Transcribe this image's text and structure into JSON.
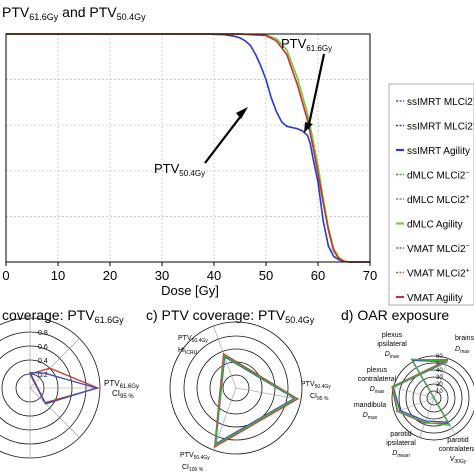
{
  "chart_data": [
    {
      "type": "line",
      "title": "PTV",
      "title_sub1": "61.6Gy",
      "title_mid": " and PTV",
      "title_sub2": "50.4Gy",
      "xlabel": "Dose [Gy]",
      "ylabel": "",
      "xlim": [
        0,
        70
      ],
      "ylim": [
        0,
        100
      ],
      "x_ticks": [
        "0",
        "10",
        "20",
        "30",
        "40",
        "50",
        "60",
        "70"
      ],
      "grid": true,
      "legend_position": "right",
      "annotations": [
        {
          "text": "PTV",
          "sub": "61.6Gy"
        },
        {
          "text": "PTV",
          "sub": "50.4Gy"
        }
      ],
      "series": [
        {
          "name": "ssIMRT MLCi2",
          "sup": "−",
          "color": "#3b4fb8",
          "style": "dashed",
          "group": "A",
          "x": [
            0,
            38,
            42,
            44,
            45,
            46,
            47,
            48,
            49,
            50,
            51,
            52,
            53,
            54,
            55,
            56,
            57,
            58,
            58.5,
            59,
            60,
            61,
            62,
            63,
            64,
            65,
            66,
            67,
            70
          ],
          "y": [
            100,
            100,
            99.7,
            99,
            98.3,
            97,
            95,
            91,
            86,
            80,
            72,
            66,
            61.5,
            59.5,
            59,
            58.5,
            57.5,
            55.5,
            52,
            46,
            35,
            18,
            7,
            2.5,
            1,
            0.3,
            0,
            0,
            0
          ]
        },
        {
          "name": "ssIMRT MLCi2",
          "sup": "+",
          "color": "#2233aa",
          "style": "dashed",
          "group": "A",
          "x": [
            0,
            38,
            42,
            44,
            45,
            46,
            47,
            48,
            49,
            50,
            51,
            52,
            53,
            54,
            55,
            56,
            57,
            58,
            58.5,
            59,
            60,
            61,
            62,
            63,
            64,
            65,
            66,
            67,
            70
          ],
          "y": [
            100,
            100,
            99.7,
            99,
            98.3,
            97,
            95,
            91,
            86,
            80,
            72,
            66,
            61.5,
            59.5,
            59,
            58.5,
            57.5,
            55.5,
            52,
            46,
            35,
            18,
            7,
            2.5,
            1,
            0.3,
            0,
            0,
            0
          ]
        },
        {
          "name": "ssIMRT Agility",
          "sup": "",
          "color": "#2a3cc4",
          "style": "solid",
          "group": "A",
          "x": [
            0,
            38,
            42,
            44,
            45,
            46,
            47,
            48,
            49,
            50,
            51,
            52,
            53,
            54,
            55,
            56,
            57,
            58,
            58.5,
            59,
            60,
            61,
            62,
            63,
            64,
            65,
            66,
            67,
            70
          ],
          "y": [
            100,
            100,
            99.7,
            99,
            98.3,
            97,
            95,
            91,
            86,
            80,
            72,
            66,
            61.5,
            59.5,
            59,
            58.5,
            57.5,
            55.5,
            52,
            46,
            35,
            18,
            7,
            2.5,
            1,
            0.3,
            0,
            0,
            0
          ]
        },
        {
          "name": "dMLC MLCi2",
          "sup": "−",
          "color": "#2f9e2f",
          "style": "dashed",
          "group": "B",
          "x": [
            0,
            45,
            50,
            52,
            54,
            56,
            58,
            59,
            60,
            61,
            62,
            63,
            64,
            65,
            66,
            67,
            70
          ],
          "y": [
            100,
            100,
            99.5,
            98,
            93,
            81,
            65,
            54,
            42,
            28,
            15,
            6,
            2,
            0.5,
            0,
            0,
            0
          ]
        },
        {
          "name": "dMLC MLCi2",
          "sup": "+",
          "color": "#3fae3f",
          "style": "dashed",
          "group": "B",
          "x": [
            0,
            45,
            50,
            52,
            54,
            56,
            58,
            59,
            60,
            61,
            62,
            63,
            64,
            65,
            66,
            67,
            70
          ],
          "y": [
            100,
            100,
            99.5,
            98,
            93,
            81,
            65,
            54,
            42,
            28,
            15,
            6,
            2,
            0.5,
            0,
            0,
            0
          ]
        },
        {
          "name": "dMLC Agility",
          "sup": "",
          "color": "#7ac943",
          "style": "solid",
          "group": "B",
          "x": [
            0,
            45,
            50,
            52,
            54,
            56,
            58,
            59,
            60,
            61,
            62,
            63,
            64,
            65,
            66,
            67,
            70
          ],
          "y": [
            100,
            100,
            99.5,
            98,
            93,
            81,
            65,
            54,
            42,
            28,
            15,
            6,
            2,
            0.5,
            0,
            0,
            0
          ]
        },
        {
          "name": "VMAT MLCi2",
          "sup": "−",
          "color": "#d0392b",
          "style": "dashed",
          "group": "C",
          "x": [
            0,
            45,
            50,
            52,
            54,
            56,
            58,
            59,
            60,
            61,
            62,
            63,
            64,
            65,
            66,
            67,
            70
          ],
          "y": [
            100,
            100,
            99.3,
            97,
            91,
            78,
            62,
            51,
            39,
            26,
            14,
            5,
            1.5,
            0.3,
            0,
            0,
            0
          ]
        },
        {
          "name": "VMAT MLCi2",
          "sup": "+",
          "color": "#e04a3a",
          "style": "dashed",
          "group": "C",
          "x": [
            0,
            45,
            50,
            52,
            54,
            56,
            58,
            59,
            60,
            61,
            62,
            63,
            64,
            65,
            66,
            67,
            70
          ],
          "y": [
            100,
            100,
            99.3,
            97,
            91,
            78,
            62,
            51,
            39,
            26,
            14,
            5,
            1.5,
            0.3,
            0,
            0,
            0
          ]
        },
        {
          "name": "VMAT Agility",
          "sup": "",
          "color": "#c0392b",
          "style": "solid",
          "group": "C",
          "x": [
            0,
            45,
            50,
            52,
            54,
            56,
            58,
            59,
            60,
            61,
            62,
            63,
            64,
            65,
            66,
            67,
            70
          ],
          "y": [
            100,
            100,
            99.3,
            97,
            91,
            78,
            62,
            51,
            39,
            26,
            14,
            5,
            1.5,
            0.3,
            0,
            0,
            0
          ]
        }
      ]
    },
    {
      "type": "radar",
      "title": "coverage: PTV",
      "title_sub": "61.6Gy",
      "ring_labels": [
        "0.2",
        "0.4",
        "0.6",
        "0.8"
      ],
      "axis_labels": [
        {
          "text": "PTV",
          "sub": "61.6Gy"
        },
        {
          "text": "CI",
          "sub": "95 %"
        }
      ],
      "series": [
        {
          "color": "#c0392b",
          "values": [
            0.2,
            0.4,
            0.97,
            0.3
          ]
        },
        {
          "color": "#3b4fb8",
          "values": [
            0.22,
            0.3,
            0.95,
            0.32
          ]
        }
      ]
    },
    {
      "type": "radar",
      "title": "c) PTV coverage: PTV",
      "title_sub": "50.4Gy",
      "axis_labels": [
        {
          "text": "PTV",
          "sub": "50.4Gy"
        },
        {
          "text": "HI",
          "sub": "ICRU"
        },
        {
          "text": "PTV",
          "sub": "50.4Gy"
        },
        {
          "text": "CI",
          "sub": "95 %"
        },
        {
          "text": "PTV",
          "sub": "50.4Gy"
        },
        {
          "text": "CI",
          "sub": "100 %"
        }
      ],
      "series": [
        {
          "color": "#c0392b",
          "values": [
            0.55,
            0.95,
            0.95
          ]
        },
        {
          "color": "#3b4fb8",
          "values": [
            0.5,
            0.9,
            0.9
          ]
        },
        {
          "color": "#3fae3f",
          "values": [
            0.52,
            0.92,
            0.92
          ]
        }
      ]
    },
    {
      "type": "radar",
      "title": "d) OAR exposure",
      "ring_labels": [
        "10",
        "20",
        "30",
        "40",
        "50",
        "60"
      ],
      "axis_labels": [
        {
          "line1": "plexus",
          "line2": "ipsilateral",
          "text": "D",
          "sub": "max"
        },
        {
          "line1": "brainstem",
          "text": "D",
          "sub": "max"
        },
        {
          "line1": "plexus",
          "line2": "contralateral",
          "text": "D",
          "sub": "max"
        },
        {
          "line1": "mandibula",
          "text": "D",
          "sub": "max"
        },
        {
          "line1": "parotid",
          "line2": "ipsilateral",
          "text": "D",
          "sub": "mean"
        },
        {
          "line1": "parotid",
          "line2": "contralateral",
          "text": "V",
          "sub": "30Gy"
        }
      ],
      "series": [
        {
          "color": "#c0392b",
          "values": [
            63,
            58,
            62,
            56,
            38,
            42
          ]
        },
        {
          "color": "#3b4fb8",
          "values": [
            62,
            55,
            60,
            52,
            35,
            40
          ]
        },
        {
          "color": "#3fae3f",
          "values": [
            64,
            56,
            61,
            55,
            37,
            45
          ]
        }
      ]
    }
  ]
}
